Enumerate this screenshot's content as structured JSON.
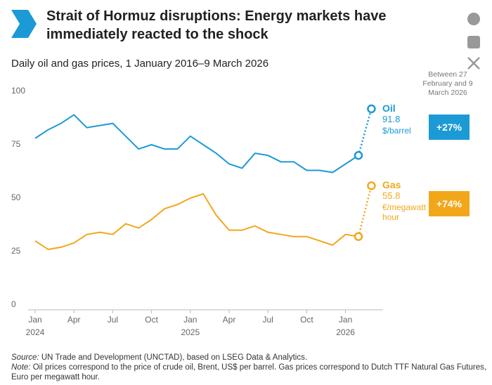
{
  "header": {
    "title": "Strait of Hormuz disruptions: Energy markets have immediately reacted to the shock"
  },
  "chart_data": {
    "type": "line",
    "subtitle": "Daily oil and gas prices, 1 January 2016–9 March 2026",
    "annotation": "Between 27 February and 9 March 2026",
    "x": [
      "2024-01",
      "2024-02",
      "2024-03",
      "2024-04",
      "2024-05",
      "2024-06",
      "2024-07",
      "2024-08",
      "2024-09",
      "2024-10",
      "2024-11",
      "2024-12",
      "2025-01",
      "2025-02",
      "2025-03",
      "2025-04",
      "2025-05",
      "2025-06",
      "2025-07",
      "2025-08",
      "2025-09",
      "2025-10",
      "2025-11",
      "2025-12",
      "2026-01",
      "2026-02",
      "2026-03"
    ],
    "xticks": [
      {
        "value": "2024-01",
        "label": "Jan"
      },
      {
        "value": "2024-04",
        "label": "Apr"
      },
      {
        "value": "2024-07",
        "label": "Jul"
      },
      {
        "value": "2024-10",
        "label": "Oct"
      },
      {
        "value": "2025-01",
        "label": "Jan"
      },
      {
        "value": "2025-04",
        "label": "Apr"
      },
      {
        "value": "2025-07",
        "label": "Jul"
      },
      {
        "value": "2025-10",
        "label": "Oct"
      },
      {
        "value": "2026-01",
        "label": "Jan"
      }
    ],
    "xtick_years": [
      {
        "value": "2024-01",
        "label": "2024"
      },
      {
        "value": "2025-01",
        "label": "2025"
      },
      {
        "value": "2026-01",
        "label": "2026"
      }
    ],
    "ylim": [
      0,
      100
    ],
    "yticks": [
      0,
      25,
      50,
      75,
      100
    ],
    "grid": false,
    "series": [
      {
        "name": "Oil",
        "color": "#1b9ad6",
        "unit": "$/barrel",
        "change": {
          "value": 27,
          "label": "+27%"
        },
        "values": [
          78,
          82,
          85,
          89,
          83,
          84,
          85,
          79,
          73,
          75,
          73,
          73,
          79,
          75,
          71,
          66,
          64,
          71,
          70,
          67,
          67,
          63,
          63,
          62,
          66,
          70,
          91.8
        ]
      },
      {
        "name": "Gas",
        "color": "#f2a71b",
        "unit": "€/megawatt hour",
        "change": {
          "value": 74,
          "label": "+74%"
        },
        "values": [
          30,
          26,
          27,
          29,
          33,
          34,
          33,
          38,
          36,
          40,
          45,
          47,
          50,
          52,
          42,
          35,
          35,
          37,
          34,
          33,
          32,
          32,
          30,
          28,
          33,
          32,
          55.8
        ]
      }
    ]
  },
  "footer": {
    "source_prefix": "Source:",
    "source": "UN Trade and Development (UNCTAD), based on LSEG Data & Analytics.",
    "note_prefix": "Note:",
    "note": "Oil prices correspond to the price of crude oil, Brent, US$ per barrel. Gas prices correspond to Dutch TTF Natural Gas Futures, Euro per megawatt hour."
  }
}
